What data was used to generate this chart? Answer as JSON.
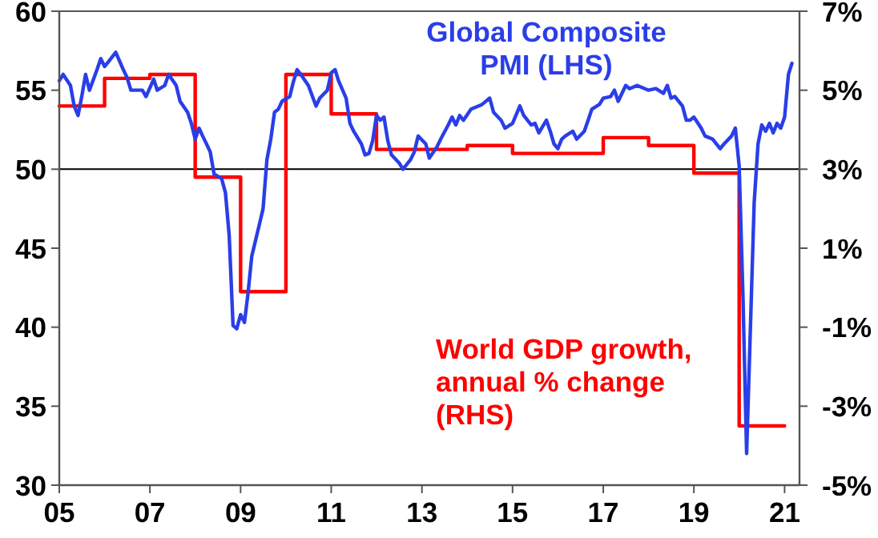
{
  "chart_data": {
    "type": "line",
    "xlim": [
      "2005-01",
      "2021-05"
    ],
    "xticks": [
      {
        "value": "2005",
        "label": "05"
      },
      {
        "value": "2007",
        "label": "07"
      },
      {
        "value": "2009",
        "label": "09"
      },
      {
        "value": "2011",
        "label": "11"
      },
      {
        "value": "2013",
        "label": "13"
      },
      {
        "value": "2015",
        "label": "15"
      },
      {
        "value": "2017",
        "label": "17"
      },
      {
        "value": "2019",
        "label": "19"
      },
      {
        "value": "2021",
        "label": "21"
      }
    ],
    "ylim": [
      30,
      60
    ],
    "yticks": [
      30,
      35,
      40,
      45,
      50,
      55,
      60
    ],
    "y2lim": [
      -5,
      7
    ],
    "y2ticks": [
      {
        "value": -5,
        "label": "-5%"
      },
      {
        "value": -3,
        "label": "-3%"
      },
      {
        "value": -1,
        "label": "-1%"
      },
      {
        "value": 1,
        "label": "1%"
      },
      {
        "value": 3,
        "label": "3%"
      },
      {
        "value": 5,
        "label": "5%"
      },
      {
        "value": 7,
        "label": "7%"
      }
    ],
    "ref_lines": [
      {
        "axis": "y",
        "value": 50,
        "color": "#000000"
      }
    ],
    "series": [
      {
        "name": "Global Composite PMI (LHS)",
        "type": "line",
        "color": "#2a3ee8",
        "x": [
          "2005-01",
          "2005-02",
          "2005-04",
          "2005-05",
          "2005-06",
          "2005-07",
          "2005-08",
          "2005-09",
          "2005-11",
          "2005-12",
          "2006-01",
          "2006-02",
          "2006-04",
          "2006-06",
          "2006-07",
          "2006-08",
          "2006-10",
          "2006-11",
          "2006-12",
          "2007-02",
          "2007-03",
          "2007-05",
          "2007-06",
          "2007-08",
          "2007-09",
          "2007-11",
          "2007-12",
          "2008-01",
          "2008-02",
          "2008-03",
          "2008-04",
          "2008-05",
          "2008-06",
          "2008-08",
          "2008-09",
          "2008-10",
          "2008-11",
          "2008-12",
          "2009-01",
          "2009-02",
          "2009-03",
          "2009-04",
          "2009-06",
          "2009-07",
          "2009-08",
          "2009-09",
          "2009-10",
          "2009-11",
          "2009-12",
          "2010-02",
          "2010-03",
          "2010-04",
          "2010-05",
          "2010-07",
          "2010-09",
          "2010-10",
          "2010-12",
          "2011-01",
          "2011-02",
          "2011-03",
          "2011-05",
          "2011-06",
          "2011-07",
          "2011-09",
          "2011-10",
          "2011-11",
          "2011-12",
          "2012-01",
          "2012-02",
          "2012-03",
          "2012-04",
          "2012-05",
          "2012-07",
          "2012-08",
          "2012-10",
          "2012-11",
          "2012-12",
          "2013-02",
          "2013-03",
          "2013-05",
          "2013-06",
          "2013-08",
          "2013-09",
          "2013-10",
          "2013-11",
          "2013-12",
          "2014-02",
          "2014-04",
          "2014-05",
          "2014-07",
          "2014-08",
          "2014-10",
          "2014-11",
          "2015-01",
          "2015-03",
          "2015-04",
          "2015-06",
          "2015-07",
          "2015-08",
          "2015-10",
          "2015-11",
          "2015-12",
          "2016-01",
          "2016-02",
          "2016-03",
          "2016-05",
          "2016-06",
          "2016-08",
          "2016-09",
          "2016-10",
          "2016-12",
          "2017-01",
          "2017-03",
          "2017-04",
          "2017-05",
          "2017-07",
          "2017-08",
          "2017-10",
          "2018-01",
          "2018-03",
          "2018-05",
          "2018-06",
          "2018-07",
          "2018-08",
          "2018-10",
          "2018-11",
          "2018-12",
          "2019-01",
          "2019-03",
          "2019-04",
          "2019-06",
          "2019-08",
          "2019-09",
          "2019-11",
          "2019-12",
          "2020-01",
          "2020-02",
          "2020-03",
          "2020-05",
          "2020-06",
          "2020-07",
          "2020-08",
          "2020-09",
          "2020-10",
          "2020-11",
          "2020-12",
          "2021-01",
          "2021-02",
          "2021-03"
        ],
        "values": [
          55.6,
          56.0,
          55.3,
          54.0,
          53.4,
          54.6,
          56.0,
          55.0,
          56.3,
          57.0,
          56.5,
          56.8,
          57.4,
          56.3,
          55.8,
          55.0,
          55.0,
          55.0,
          54.6,
          55.7,
          55.0,
          55.3,
          56.0,
          55.3,
          54.3,
          53.6,
          52.9,
          51.9,
          52.6,
          52.1,
          51.6,
          51.1,
          49.7,
          49.4,
          48.5,
          45.8,
          40.1,
          39.9,
          40.8,
          40.3,
          42.1,
          44.5,
          46.5,
          47.5,
          50.6,
          51.9,
          53.6,
          53.8,
          54.3,
          54.6,
          55.5,
          56.3,
          56.0,
          55.3,
          54.0,
          54.5,
          55.0,
          56.1,
          56.3,
          55.6,
          54.5,
          52.9,
          52.4,
          51.6,
          50.9,
          51.0,
          51.8,
          53.4,
          53.1,
          53.3,
          51.8,
          50.9,
          50.4,
          50.0,
          50.6,
          51.1,
          52.1,
          51.6,
          50.7,
          51.4,
          51.9,
          52.8,
          53.3,
          52.8,
          53.4,
          53.1,
          53.8,
          54.0,
          54.1,
          54.5,
          53.6,
          53.1,
          52.6,
          52.9,
          54.0,
          53.4,
          52.8,
          52.9,
          52.3,
          53.1,
          52.4,
          51.6,
          51.3,
          51.9,
          52.1,
          52.4,
          51.9,
          52.4,
          53.1,
          53.8,
          54.1,
          54.5,
          54.6,
          55.0,
          54.3,
          55.3,
          55.1,
          55.3,
          55.0,
          55.1,
          54.8,
          55.3,
          54.5,
          54.6,
          54.0,
          53.1,
          53.1,
          53.3,
          52.6,
          52.1,
          51.9,
          51.3,
          51.6,
          52.1,
          52.6,
          50.2,
          41.8,
          32.0,
          47.9,
          51.6,
          52.8,
          52.4,
          52.9,
          52.3,
          52.9,
          52.6,
          53.3,
          56.0,
          56.7
        ]
      },
      {
        "name": "World GDP growth, annual % change (RHS)",
        "type": "step",
        "axis": "y2",
        "color": "#ff0000",
        "x": [
          "2005-01",
          "2006-01",
          "2007-01",
          "2008-01",
          "2009-01",
          "2010-01",
          "2011-01",
          "2012-01",
          "2013-01",
          "2014-01",
          "2015-01",
          "2016-01",
          "2017-01",
          "2018-01",
          "2019-01",
          "2020-01",
          "2021-01"
        ],
        "values": [
          4.6,
          5.3,
          5.4,
          2.8,
          -0.1,
          5.4,
          4.4,
          3.5,
          3.5,
          3.6,
          3.4,
          3.4,
          3.8,
          3.6,
          2.9,
          -3.5,
          -3.5
        ]
      }
    ]
  }
}
